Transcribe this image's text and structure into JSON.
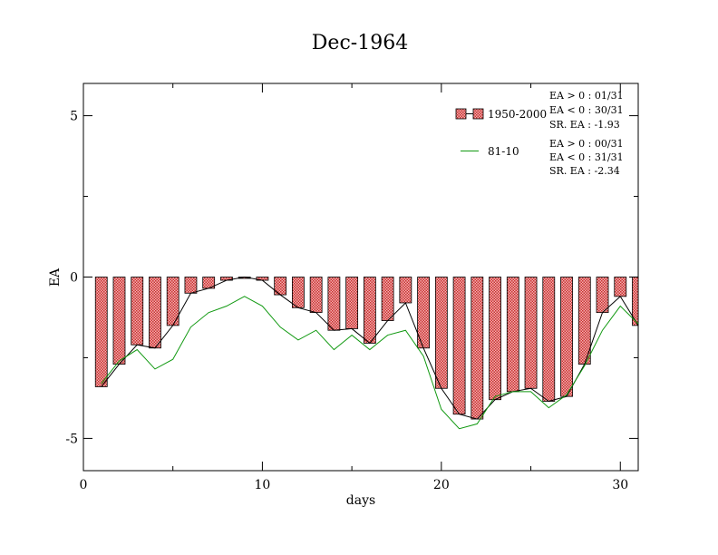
{
  "chart_data": {
    "type": "bar",
    "title": "Dec-1964",
    "xlabel": "days",
    "ylabel": "EA",
    "xlim": [
      0,
      31
    ],
    "ylim": [
      -6,
      6
    ],
    "xticks": [
      0,
      10,
      20,
      30
    ],
    "yticks": [
      -5,
      0,
      5
    ],
    "ytick_labels": [
      "-5",
      "0",
      "5"
    ],
    "xtick_labels": [
      "0",
      "10",
      "20",
      "30"
    ],
    "grid": false,
    "legend_placement": "top-right",
    "x": [
      1,
      2,
      3,
      4,
      5,
      6,
      7,
      8,
      9,
      10,
      11,
      12,
      13,
      14,
      15,
      16,
      17,
      18,
      19,
      20,
      21,
      22,
      23,
      24,
      25,
      26,
      27,
      28,
      29,
      30,
      31
    ],
    "series": [
      {
        "name": "1950-2000",
        "kind": "bar",
        "color": "#e06060",
        "values": [
          -3.4,
          -2.7,
          -2.1,
          -2.2,
          -1.5,
          -0.5,
          -0.35,
          -0.1,
          0.0,
          -0.1,
          -0.55,
          -0.95,
          -1.1,
          -1.65,
          -1.6,
          -2.05,
          -1.35,
          -0.8,
          -2.2,
          -3.45,
          -4.25,
          -4.4,
          -3.8,
          -3.55,
          -3.45,
          -3.85,
          -3.7,
          -2.7,
          -1.1,
          -0.6,
          -1.5
        ]
      },
      {
        "name": "",
        "kind": "line",
        "color": "#000000",
        "values": [
          -3.4,
          -2.7,
          -2.1,
          -2.2,
          -1.5,
          -0.5,
          -0.35,
          -0.1,
          0.0,
          -0.1,
          -0.55,
          -0.95,
          -1.1,
          -1.65,
          -1.6,
          -2.05,
          -1.35,
          -0.8,
          -2.2,
          -3.45,
          -4.25,
          -4.4,
          -3.8,
          -3.55,
          -3.45,
          -3.85,
          -3.7,
          -2.7,
          -1.1,
          -0.6,
          -1.5
        ]
      },
      {
        "name": "81-10",
        "kind": "line",
        "color": "#119911",
        "values": [
          -3.3,
          -2.6,
          -2.25,
          -2.85,
          -2.55,
          -1.55,
          -1.1,
          -0.9,
          -0.6,
          -0.9,
          -1.55,
          -1.95,
          -1.65,
          -2.25,
          -1.8,
          -2.25,
          -1.8,
          -1.65,
          -2.45,
          -4.1,
          -4.7,
          -4.55,
          -3.7,
          -3.55,
          -3.55,
          -4.05,
          -3.65,
          -2.75,
          -1.65,
          -0.9,
          -1.45
        ]
      }
    ],
    "stats": [
      [
        "EA > 0 : 01/31",
        "EA < 0 : 30/31",
        "SR. EA : -1.93"
      ],
      [
        "EA > 0 : 00/31",
        "EA < 0 : 31/31",
        "SR. EA : -2.34"
      ]
    ]
  }
}
